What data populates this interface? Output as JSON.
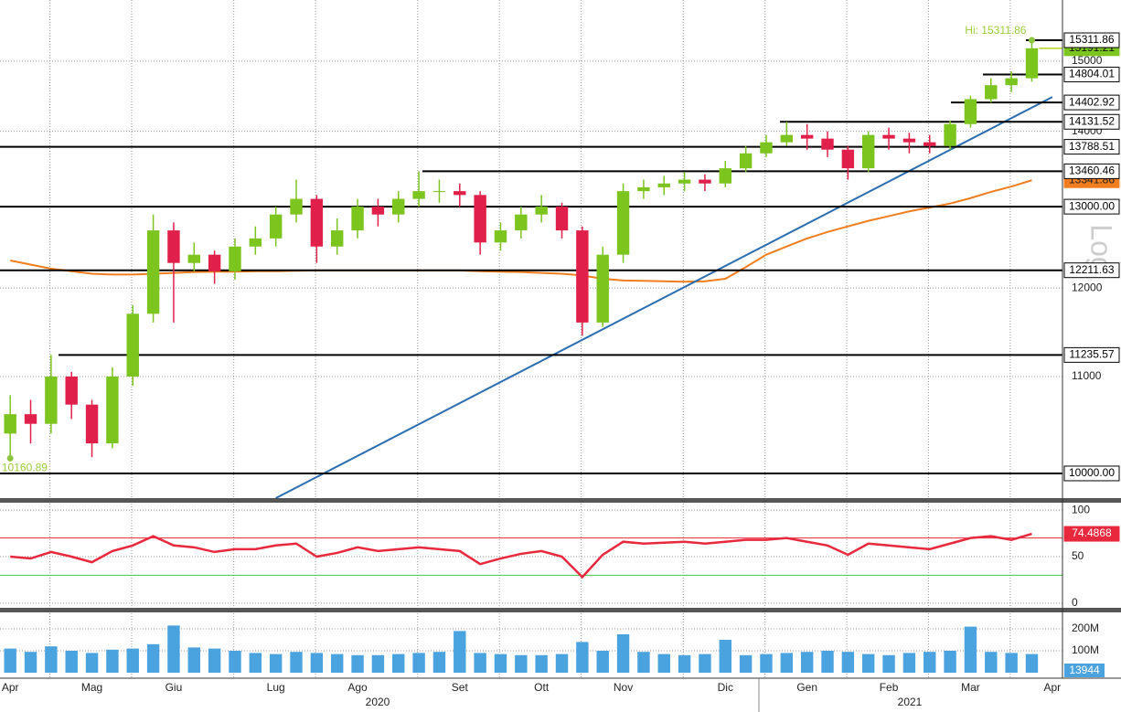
{
  "chart_data": [
    {
      "type": "candlestick",
      "categories": [
        "Apr",
        null,
        null,
        null,
        "Mag",
        null,
        null,
        null,
        "Giu",
        null,
        null,
        null,
        null,
        "Lug",
        null,
        null,
        null,
        "Ago",
        null,
        null,
        null,
        null,
        "Set",
        null,
        null,
        null,
        "Ott",
        null,
        null,
        null,
        "Nov",
        null,
        null,
        null,
        null,
        "Dic",
        null,
        null,
        null,
        "Gen",
        null,
        null,
        null,
        "Feb",
        null,
        null,
        null,
        "Mar",
        null,
        null,
        null,
        "Apr"
      ],
      "x_group_labels": [
        "2020",
        "2021"
      ],
      "open": [
        10400,
        10600,
        10500,
        11000,
        10700,
        10300,
        11000,
        11700,
        12700,
        12300,
        12400,
        12200,
        12500,
        12600,
        12900,
        13100,
        12500,
        12700,
        13000,
        12900,
        13100,
        13200,
        13200,
        13150,
        12550,
        12700,
        12900,
        13000,
        12700,
        11600,
        12400,
        13200,
        13250,
        13300,
        13350,
        13300,
        13500,
        13700,
        13850,
        13950,
        13900,
        13750,
        13500,
        13950,
        13900,
        13850,
        13800,
        14100,
        14450,
        14650,
        14750,
        null
      ],
      "high": [
        10800,
        10750,
        11235.57,
        11050,
        10750,
        11100,
        11800,
        12900,
        12800,
        12550,
        12450,
        12600,
        12750,
        13000,
        13350,
        13150,
        12850,
        13100,
        13100,
        13200,
        13460.46,
        13350,
        13300,
        13200,
        12800,
        13000,
        13150,
        13050,
        12750,
        12500,
        13300,
        13350,
        13400,
        13450,
        13420,
        13600,
        13800,
        13950,
        14131.52,
        14100,
        14000,
        13800,
        14000,
        14050,
        13980,
        13950,
        14150,
        14500,
        14750,
        14850,
        15311.86,
        null
      ],
      "low": [
        10150,
        10300,
        10400,
        10550,
        10160.89,
        10250,
        10900,
        11600,
        11600,
        12200,
        12050,
        12100,
        12400,
        12500,
        12800,
        12300,
        12400,
        12600,
        12750,
        12800,
        13000,
        13050,
        13000,
        12400,
        12450,
        12600,
        12800,
        12600,
        11450,
        11550,
        12300,
        13100,
        13150,
        13200,
        13200,
        13250,
        13450,
        13650,
        13800,
        13750,
        13650,
        13350,
        13450,
        13750,
        13700,
        13700,
        13750,
        14050,
        14400,
        14550,
        14700,
        null
      ],
      "close": [
        10600,
        10500,
        11000,
        10700,
        10300,
        11000,
        11700,
        12700,
        12300,
        12400,
        12200,
        12500,
        12600,
        12900,
        13100,
        12500,
        12700,
        13000,
        12900,
        13100,
        13200,
        13200,
        13150,
        12550,
        12700,
        12900,
        13000,
        12700,
        11600,
        12400,
        13200,
        13250,
        13300,
        13350,
        13300,
        13500,
        13700,
        13850,
        13950,
        13900,
        13750,
        13500,
        13950,
        13900,
        13850,
        13800,
        14100,
        14450,
        14650,
        14750,
        15191.21,
        null
      ],
      "colors": {
        "up": "#7cc41e",
        "down": "#e0204a"
      },
      "ylim": [
        9760,
        15930
      ],
      "log_scale": true,
      "scale_label": "Log",
      "yticks": [
        10000,
        11000,
        12000,
        13000,
        14000,
        15000
      ],
      "grid": true,
      "ma": {
        "color": "#f07d1e",
        "values": [
          12330,
          12280,
          12230,
          12200,
          12170,
          12160,
          12160,
          12170,
          12180,
          12190,
          12195,
          12195,
          12200,
          12200,
          12205,
          12210,
          12210,
          12210,
          12210,
          12210,
          12210,
          12210,
          12210,
          12200,
          12195,
          12190,
          12180,
          12170,
          12150,
          12110,
          12090,
          12085,
          12080,
          12075,
          12080,
          12110,
          12250,
          12400,
          12500,
          12600,
          12680,
          12750,
          12820,
          12880,
          12940,
          12990,
          13040,
          13110,
          13190,
          13260,
          13341.86,
          null
        ]
      },
      "trendline": {
        "color": "#2a6db0",
        "x": [
          13,
          51
        ],
        "values": [
          9760,
          14480
        ]
      },
      "levels": [
        15311.86,
        14804.01,
        14402.92,
        14131.52,
        13788.51,
        13460.46,
        {
          "value": 13000,
          "label": "13000.00"
        },
        12211.63,
        11235.57,
        {
          "value": 10000,
          "label": "10000.00"
        }
      ],
      "annotations": {
        "high": "Hi: 15311.86",
        "low": "Low: 10160.89"
      }
    },
    {
      "type": "line",
      "color": "#e8283c",
      "values": [
        50,
        48,
        55,
        50,
        44,
        56,
        62,
        72,
        62,
        60,
        55,
        58,
        58,
        62,
        64,
        50,
        54,
        60,
        56,
        58,
        60,
        58,
        56,
        42,
        48,
        53,
        56,
        50,
        28,
        52,
        66,
        64,
        65,
        66,
        64,
        66,
        68,
        68,
        70,
        66,
        62,
        52,
        64,
        62,
        60,
        58,
        64,
        70,
        72,
        68,
        74.4868,
        null
      ],
      "ylim": [
        -5,
        105
      ],
      "yticks": [
        0,
        50,
        100
      ],
      "reference_lines": [
        {
          "value": 70,
          "color": "#e8283c"
        },
        {
          "value": 30,
          "color": "#3cc83c"
        }
      ]
    },
    {
      "type": "bar",
      "color": "#4aa3df",
      "values": [
        110000000,
        95000000,
        120000000,
        100000000,
        90000000,
        105000000,
        110000000,
        130000000,
        215000000,
        115000000,
        110000000,
        100000000,
        90000000,
        85000000,
        95000000,
        90000000,
        85000000,
        80000000,
        80000000,
        85000000,
        90000000,
        95000000,
        190000000,
        90000000,
        85000000,
        80000000,
        80000000,
        85000000,
        140000000,
        100000000,
        175000000,
        95000000,
        85000000,
        80000000,
        85000000,
        150000000,
        80000000,
        85000000,
        90000000,
        95000000,
        100000000,
        95000000,
        85000000,
        80000000,
        90000000,
        95000000,
        100000000,
        210000000,
        95000000,
        90000000,
        85000000,
        null
      ],
      "ylim": [
        0,
        260000000
      ],
      "yticks": [
        {
          "value": 100000000,
          "label": "100M"
        },
        {
          "value": 200000000,
          "label": "200M"
        }
      ],
      "last_label": "13944"
    }
  ]
}
